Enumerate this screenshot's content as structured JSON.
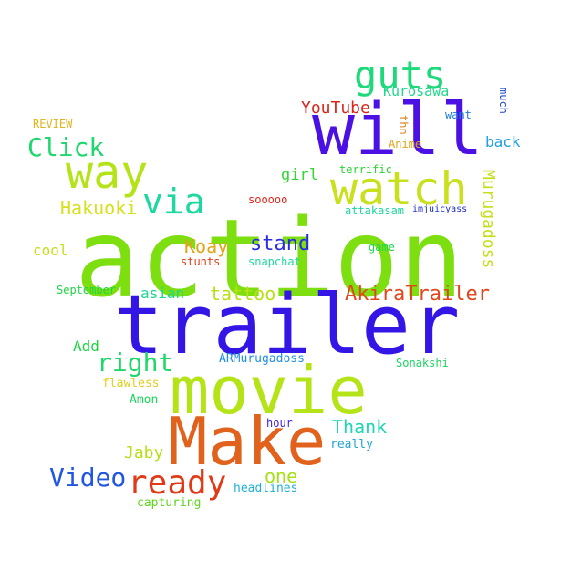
{
  "words": {
    "action": {
      "text": "action",
      "color": "#7ddf10"
    },
    "trailer": {
      "text": "trailer",
      "color": "#3316e6"
    },
    "movie": {
      "text": "movie",
      "color": "#b4e418"
    },
    "make": {
      "text": "Make",
      "color": "#e0621c"
    },
    "will": {
      "text": "will",
      "color": "#4a10e4"
    },
    "watch": {
      "text": "watch",
      "color": "#c9e01c"
    },
    "way": {
      "text": "way",
      "color": "#b4e418"
    },
    "guts": {
      "text": "guts",
      "color": "#1ed97a"
    },
    "ready": {
      "text": "ready",
      "color": "#e03a18"
    },
    "via": {
      "text": "via",
      "color": "#1fd7a0"
    },
    "click": {
      "text": "Click",
      "color": "#1ed86e"
    },
    "video": {
      "text": "Video",
      "color": "#2255e0"
    },
    "right": {
      "text": "right",
      "color": "#1fd86a"
    },
    "akiratrailer": {
      "text": "AkiraTrailer",
      "color": "#e0481c"
    },
    "youtube": {
      "text": "YouTube",
      "color": "#d8261a"
    },
    "hakuoki": {
      "text": "Hakuoki",
      "color": "#d6e01c"
    },
    "stand": {
      "text": "stand",
      "color": "#2a2ce0"
    },
    "koay": {
      "text": "Koay",
      "color": "#e0a418"
    },
    "tattoo": {
      "text": "tattoo",
      "color": "#b8e018"
    },
    "murugadoss": {
      "text": "Murugadoss",
      "color": "#c6de1c"
    },
    "thank": {
      "text": "Thank",
      "color": "#1fd6b4"
    },
    "jaby": {
      "text": "Jaby",
      "color": "#b4e018"
    },
    "one": {
      "text": "one",
      "color": "#a6e018"
    },
    "kurosawa": {
      "text": "Kurosawa",
      "color": "#1fd78c"
    },
    "back": {
      "text": "back",
      "color": "#1f9fe0"
    },
    "girl": {
      "text": "girl",
      "color": "#34d632"
    },
    "cool": {
      "text": "cool",
      "color": "#c6de1c"
    },
    "asian": {
      "text": "asian",
      "color": "#1fd690"
    },
    "add": {
      "text": "Add",
      "color": "#1ed440"
    },
    "sonakshi": {
      "text": "Sonakshi",
      "color": "#1ed462"
    },
    "armurugadoss": {
      "text": "ARMurugadoss",
      "color": "#1f8fe0"
    },
    "capturing": {
      "text": "capturing",
      "color": "#5ed61e"
    },
    "headlines": {
      "text": "headlines",
      "color": "#1fb0d6"
    },
    "really": {
      "text": "really",
      "color": "#1fa6d6"
    },
    "hour": {
      "text": "hour",
      "color": "#3a1ee0"
    },
    "flawless": {
      "text": "flawless",
      "color": "#e0d01e"
    },
    "amon": {
      "text": "Amon",
      "color": "#1ed45c"
    },
    "september": {
      "text": "September",
      "color": "#1ed446"
    },
    "stunts": {
      "text": "stunts",
      "color": "#e0401c"
    },
    "snapchat": {
      "text": "snapchat",
      "color": "#1fd6a0"
    },
    "game": {
      "text": "game",
      "color": "#1ed64a"
    },
    "attakasam": {
      "text": "attakasam",
      "color": "#1fd69c"
    },
    "imjuicyass": {
      "text": "imjuicyass",
      "color": "#1e2ec8"
    },
    "sooooo": {
      "text": "sooooo",
      "color": "#e0261c"
    },
    "terrific": {
      "text": "terrific",
      "color": "#2ad432"
    },
    "anime": {
      "text": "Anime",
      "color": "#e0a418"
    },
    "thn": {
      "text": "thn",
      "color": "#d8821c"
    },
    "want": {
      "text": "want",
      "color": "#1e7ad6"
    },
    "much": {
      "text": "much",
      "color": "#1e48d0"
    },
    "review": {
      "text": "REVIEW",
      "color": "#e0b41e"
    }
  }
}
